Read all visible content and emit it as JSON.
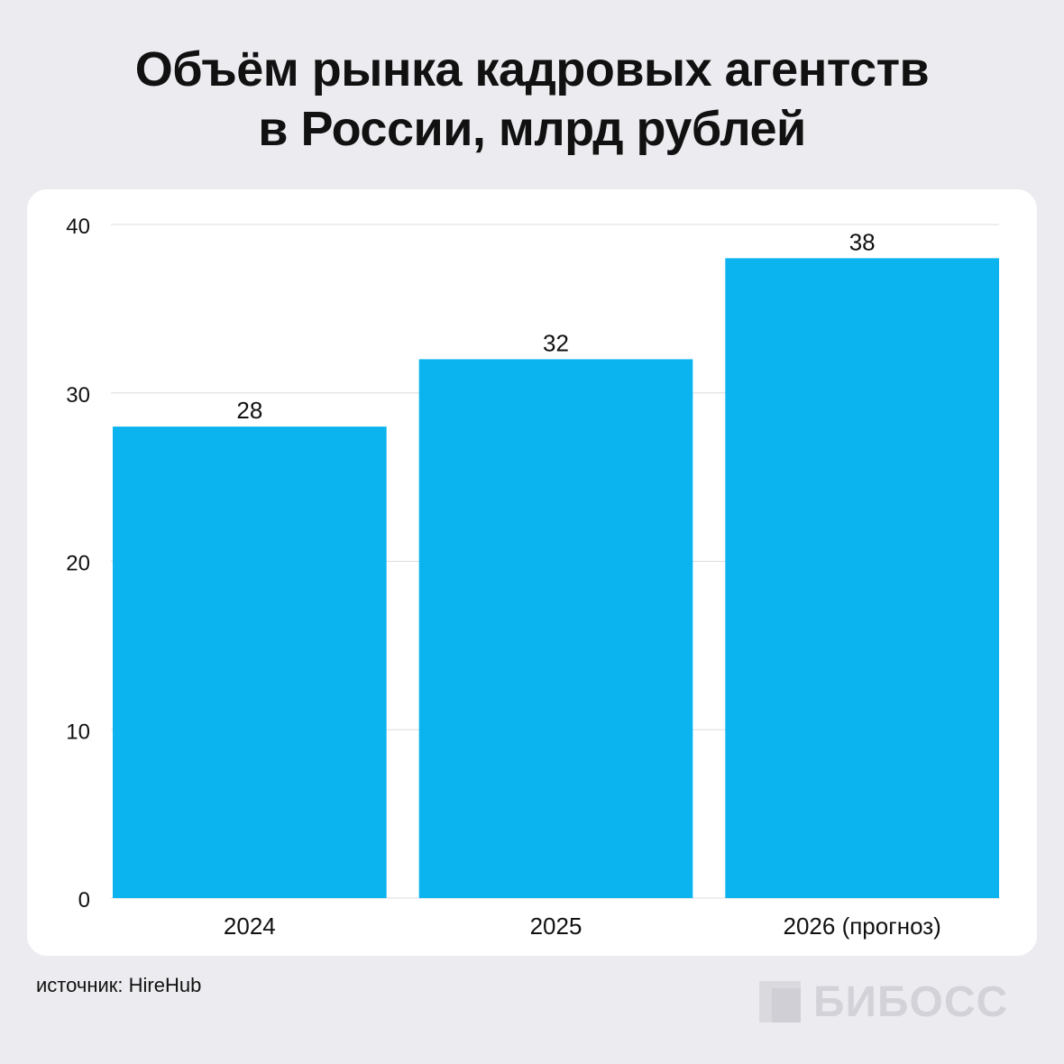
{
  "title_lines": [
    "Объём рынка кадровых агентств",
    "в России, млрд рублей"
  ],
  "source": "источник: HireHub",
  "brand": {
    "name": "БИБОСС"
  },
  "colors": {
    "bar": "#0bb4ef",
    "grid": "#dcdcdc",
    "background": "#ececf0",
    "card": "#ffffff"
  },
  "chart_data": {
    "type": "bar",
    "title": "Объём рынка кадровых агентств в России, млрд рублей",
    "categories": [
      "2024",
      "2025",
      "2026 (прогноз)"
    ],
    "values": [
      28,
      32,
      38
    ],
    "data_labels": [
      "28",
      "32",
      "38"
    ],
    "yticks": [
      0,
      10,
      20,
      30,
      40
    ],
    "ylim": [
      0,
      40
    ],
    "grid": true,
    "legend": "none"
  }
}
